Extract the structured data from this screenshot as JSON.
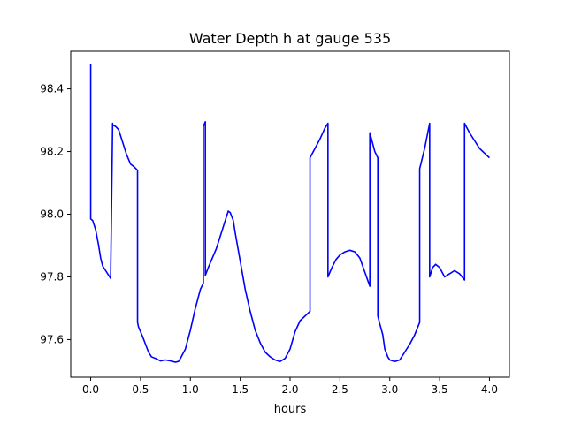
{
  "chart_data": {
    "type": "line",
    "title": "Water Depth h at gauge 535",
    "xlabel": "hours",
    "ylabel": "",
    "xlim": [
      -0.2,
      4.2
    ],
    "ylim": [
      97.48,
      98.52
    ],
    "x_ticks": [
      0.0,
      0.5,
      1.0,
      1.5,
      2.0,
      2.5,
      3.0,
      3.5,
      4.0
    ],
    "x_tick_labels": [
      "0.0",
      "0.5",
      "1.0",
      "1.5",
      "2.0",
      "2.5",
      "3.0",
      "3.5",
      "4.0"
    ],
    "y_ticks": [
      97.6,
      97.8,
      98.0,
      98.2,
      98.4
    ],
    "y_tick_labels": [
      "97.6",
      "97.8",
      "98.0",
      "98.2",
      "98.4"
    ],
    "grid": false,
    "legend": "none",
    "series": [
      {
        "color": "#0000ff",
        "x": [
          0.0,
          0.0,
          0.02,
          0.05,
          0.08,
          0.1,
          0.12,
          0.15,
          0.2,
          0.22,
          0.22,
          0.25,
          0.28,
          0.3,
          0.33,
          0.36,
          0.4,
          0.44,
          0.47,
          0.47,
          0.48,
          0.5,
          0.52,
          0.55,
          0.58,
          0.61,
          0.65,
          0.7,
          0.75,
          0.8,
          0.85,
          0.88,
          0.9,
          0.95,
          1.0,
          1.05,
          1.1,
          1.13,
          1.13,
          1.15,
          1.15,
          1.18,
          1.22,
          1.26,
          1.3,
          1.33,
          1.36,
          1.38,
          1.4,
          1.43,
          1.45,
          1.5,
          1.55,
          1.6,
          1.65,
          1.7,
          1.75,
          1.8,
          1.85,
          1.9,
          1.95,
          2.0,
          2.05,
          2.1,
          2.15,
          2.2,
          2.2,
          2.25,
          2.3,
          2.35,
          2.38,
          2.38,
          2.42,
          2.46,
          2.5,
          2.55,
          2.6,
          2.65,
          2.7,
          2.75,
          2.8,
          2.8,
          2.85,
          2.88,
          2.88,
          2.9,
          2.93,
          2.95,
          2.98,
          3.0,
          3.05,
          3.1,
          3.15,
          3.2,
          3.25,
          3.3,
          3.3,
          3.35,
          3.4,
          3.4,
          3.43,
          3.46,
          3.5,
          3.55,
          3.6,
          3.65,
          3.7,
          3.75,
          3.75,
          3.8,
          3.85,
          3.9,
          3.95,
          4.0
        ],
        "y": [
          98.48,
          97.985,
          97.98,
          97.95,
          97.9,
          97.86,
          97.835,
          97.82,
          97.795,
          98.29,
          98.285,
          98.28,
          98.27,
          98.25,
          98.22,
          98.19,
          98.16,
          98.15,
          98.14,
          97.655,
          97.64,
          97.625,
          97.61,
          97.585,
          97.56,
          97.545,
          97.54,
          97.532,
          97.535,
          97.532,
          97.528,
          97.53,
          97.54,
          97.57,
          97.63,
          97.7,
          97.76,
          97.78,
          98.28,
          98.295,
          97.805,
          97.83,
          97.86,
          97.89,
          97.93,
          97.96,
          97.99,
          98.01,
          98.005,
          97.98,
          97.94,
          97.85,
          97.76,
          97.69,
          97.63,
          97.59,
          97.56,
          97.545,
          97.535,
          97.53,
          97.54,
          97.57,
          97.625,
          97.66,
          97.675,
          97.69,
          98.18,
          98.21,
          98.24,
          98.275,
          98.29,
          97.8,
          97.83,
          97.855,
          97.87,
          97.88,
          97.885,
          97.88,
          97.86,
          97.815,
          97.77,
          98.26,
          98.2,
          98.18,
          97.675,
          97.65,
          97.615,
          97.57,
          97.545,
          97.535,
          97.53,
          97.535,
          97.56,
          97.585,
          97.615,
          97.655,
          98.145,
          98.21,
          98.29,
          97.8,
          97.83,
          97.84,
          97.83,
          97.8,
          97.81,
          97.82,
          97.81,
          97.79,
          98.29,
          98.26,
          98.235,
          98.21,
          98.195,
          98.18
        ]
      }
    ]
  }
}
